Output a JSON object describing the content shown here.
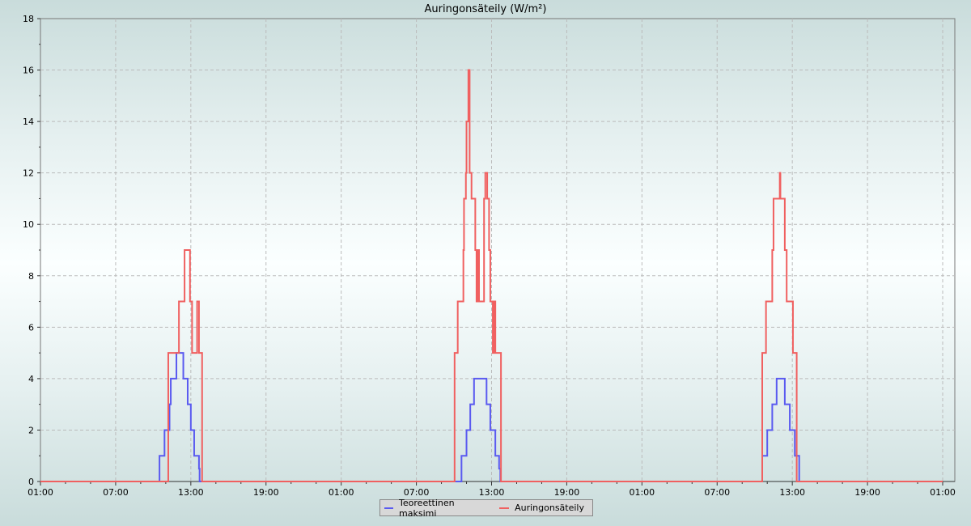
{
  "chart_data": {
    "type": "line",
    "title": "Auringonsäteily (W/m²)",
    "xlabel": "",
    "ylabel": "",
    "ylim": [
      0,
      18
    ],
    "yticks": [
      "0",
      "2",
      "4",
      "6",
      "8",
      "10",
      "12",
      "14",
      "16",
      "18"
    ],
    "xticks": [
      "01:00",
      "07:00",
      "13:00",
      "19:00",
      "01:00",
      "07:00",
      "13:00",
      "19:00",
      "01:00",
      "07:00",
      "13:00",
      "19:00",
      "01:00"
    ],
    "grid": true,
    "legend_position": "bottom",
    "step": true,
    "series": [
      {
        "name": "Teoreettinen maksimi",
        "color": "#5a5af0",
        "days": [
          [
            [
              "10:30",
              1
            ],
            [
              "10:54",
              2
            ],
            [
              "11:18",
              3
            ],
            [
              "11:24",
              4
            ],
            [
              "11:51",
              5
            ],
            [
              "12:24",
              4
            ],
            [
              "12:45",
              3
            ],
            [
              "13:00",
              2
            ],
            [
              "13:16",
              1
            ],
            [
              "13:39",
              0.5
            ],
            [
              "13:42",
              0
            ]
          ],
          [
            [
              "10:36",
              1
            ],
            [
              "11:00",
              2
            ],
            [
              "11:18",
              3
            ],
            [
              "11:36",
              4
            ],
            [
              "12:36",
              3
            ],
            [
              "12:54",
              2
            ],
            [
              "13:18",
              1
            ],
            [
              "13:36",
              0.5
            ],
            [
              "13:42",
              0
            ]
          ],
          [
            [
              "10:36",
              1
            ],
            [
              "11:00",
              2
            ],
            [
              "11:24",
              3
            ],
            [
              "11:45",
              4
            ],
            [
              "12:24",
              3
            ],
            [
              "12:48",
              2
            ],
            [
              "13:12",
              1
            ],
            [
              "13:33",
              0
            ]
          ]
        ]
      },
      {
        "name": "Auringonsäteily",
        "color": "#f06060",
        "days": [
          [
            [
              "11:12",
              5
            ],
            [
              "12:03",
              7
            ],
            [
              "12:30",
              9
            ],
            [
              "12:56",
              7
            ],
            [
              "13:06",
              5
            ],
            [
              "13:30",
              7
            ],
            [
              "13:39",
              5
            ],
            [
              "13:54",
              0
            ]
          ],
          [
            [
              "10:03",
              5
            ],
            [
              "10:18",
              7
            ],
            [
              "10:45",
              9
            ],
            [
              "10:48",
              11
            ],
            [
              "10:57",
              12
            ],
            [
              "11:00",
              14
            ],
            [
              "11:09",
              16
            ],
            [
              "11:15",
              12
            ],
            [
              "11:24",
              11
            ],
            [
              "11:42",
              9
            ],
            [
              "11:48",
              7
            ],
            [
              "11:54",
              9
            ],
            [
              "12:00",
              7
            ],
            [
              "12:24",
              11
            ],
            [
              "12:30",
              12
            ],
            [
              "12:39",
              11
            ],
            [
              "12:48",
              9
            ],
            [
              "12:54",
              7
            ],
            [
              "13:06",
              5
            ],
            [
              "13:12",
              7
            ],
            [
              "13:18",
              5
            ],
            [
              "13:45",
              0
            ]
          ],
          [
            [
              "10:36",
              5
            ],
            [
              "10:54",
              7
            ],
            [
              "11:24",
              9
            ],
            [
              "11:30",
              11
            ],
            [
              "12:00",
              12
            ],
            [
              "12:03",
              11
            ],
            [
              "12:24",
              9
            ],
            [
              "12:33",
              7
            ],
            [
              "13:03",
              5
            ],
            [
              "13:21",
              0
            ]
          ]
        ]
      }
    ]
  }
}
